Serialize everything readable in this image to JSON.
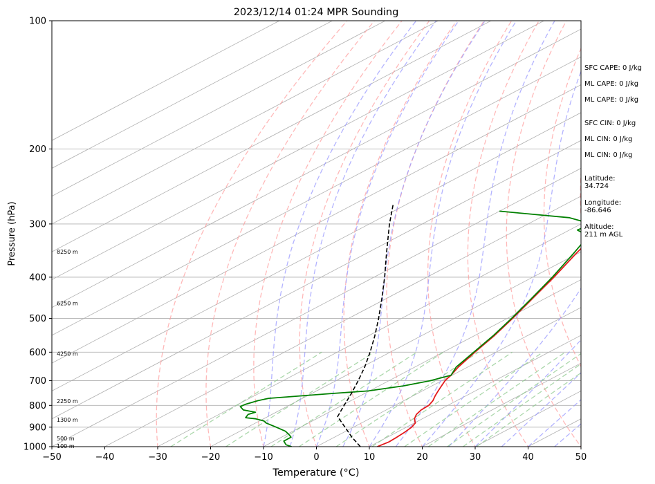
{
  "chart_data": {
    "type": "skew-t",
    "title": "2023/12/14 01:24 MPR Sounding",
    "xlabel": "Temperature (°C)",
    "ylabel": "Pressure (hPa)",
    "xlim": [
      -50,
      50
    ],
    "ylim": [
      1000,
      100
    ],
    "x_ticks": [
      -50,
      -40,
      -30,
      -20,
      -10,
      0,
      10,
      20,
      30,
      40,
      50
    ],
    "y_ticks": [
      100,
      200,
      300,
      400,
      500,
      600,
      700,
      800,
      900,
      1000
    ],
    "y_scale": "log",
    "grid": true,
    "temperature": {
      "color": "#e41a1c",
      "points": [
        [
          1000,
          11.5
        ],
        [
          975,
          12.0
        ],
        [
          950,
          11.8
        ],
        [
          925,
          11.5
        ],
        [
          900,
          11.0
        ],
        [
          880,
          10.2
        ],
        [
          860,
          8.5
        ],
        [
          840,
          7.3
        ],
        [
          820,
          6.6
        ],
        [
          800,
          6.4
        ],
        [
          780,
          5.5
        ],
        [
          760,
          4.2
        ],
        [
          740,
          3.0
        ],
        [
          720,
          1.8
        ],
        [
          700,
          0.6
        ],
        [
          690,
          0.2
        ],
        [
          680,
          -0.2
        ],
        [
          650,
          -1.8
        ],
        [
          600,
          -4.0
        ],
        [
          550,
          -6.2
        ],
        [
          500,
          -9.0
        ],
        [
          450,
          -12.3
        ],
        [
          400,
          -16.0
        ],
        [
          350,
          -20.5
        ],
        [
          320,
          -23.2
        ],
        [
          300,
          -25.0
        ],
        [
          285,
          -26.8
        ],
        [
          275,
          -28.5
        ],
        [
          265,
          -30.6
        ]
      ]
    },
    "dewpoint": {
      "color": "#008000",
      "points": [
        [
          1000,
          -4.7
        ],
        [
          990,
          -6.4
        ],
        [
          970,
          -8.2
        ],
        [
          950,
          -8.2
        ],
        [
          940,
          -9.2
        ],
        [
          920,
          -11.4
        ],
        [
          900,
          -14.6
        ],
        [
          880,
          -18.0
        ],
        [
          870,
          -19.2
        ],
        [
          860,
          -21.5
        ],
        [
          855,
          -23.8
        ],
        [
          840,
          -24.5
        ],
        [
          830,
          -23.9
        ],
        [
          820,
          -27.0
        ],
        [
          805,
          -28.8
        ],
        [
          795,
          -28.6
        ],
        [
          780,
          -27.6
        ],
        [
          770,
          -26.4
        ],
        [
          750,
          -16.0
        ],
        [
          740,
          -10.2
        ],
        [
          720,
          -5.4
        ],
        [
          700,
          -2.2
        ],
        [
          680,
          -0.2
        ],
        [
          650,
          -2.2
        ],
        [
          600,
          -4.2
        ],
        [
          550,
          -6.4
        ],
        [
          500,
          -9.2
        ],
        [
          450,
          -12.5
        ],
        [
          400,
          -16.3
        ],
        [
          350,
          -21.0
        ],
        [
          320,
          -24.3
        ],
        [
          310,
          -28.5
        ],
        [
          300,
          -28.0
        ],
        [
          290,
          -34.5
        ],
        [
          280,
          -50.0
        ]
      ]
    },
    "parcel": {
      "color": "#000000",
      "points": [
        [
          1000,
          8.3
        ],
        [
          950,
          3.3
        ],
        [
          900,
          -1.6
        ],
        [
          850,
          -6.8
        ],
        [
          800,
          -9.6
        ],
        [
          750,
          -12.5
        ],
        [
          700,
          -15.8
        ],
        [
          650,
          -19.5
        ],
        [
          600,
          -23.8
        ],
        [
          550,
          -28.7
        ],
        [
          500,
          -34.3
        ],
        [
          450,
          -40.7
        ],
        [
          400,
          -48.0
        ],
        [
          350,
          -56.5
        ],
        [
          300,
          -66.2
        ],
        [
          270,
          -72.5
        ]
      ]
    },
    "height_labels": [
      {
        "p": 1000,
        "label": "100 m"
      },
      {
        "p": 960,
        "label": "500 m"
      },
      {
        "p": 868,
        "label": "1300 m"
      },
      {
        "p": 785,
        "label": "2250 m"
      },
      {
        "p": 607,
        "label": "4250 m"
      },
      {
        "p": 462,
        "label": "6250 m"
      },
      {
        "p": 350,
        "label": "8250 m"
      }
    ]
  },
  "info_panel": {
    "sfc_cape": "SFC CAPE: 0 J/kg",
    "ml_cape_1": "ML CAPE: 0 J/kg",
    "ml_cape_2": "ML CAPE: 0 J/kg",
    "sfc_cin": "SFC CIN: 0 J/kg",
    "ml_cin_1": "ML CIN: 0 J/kg",
    "ml_cin_2": "ML CIN: 0 J/kg",
    "latitude_label": "Latitude:",
    "latitude_value": "34.724",
    "longitude_label": "Longitude:",
    "longitude_value": "-86.646",
    "altitude_label": "Altitude:",
    "altitude_value": "211 m AGL"
  },
  "colors": {
    "isotherm": "#b0b0b0",
    "dry_adiabat": "#ff9a9a",
    "moist_adiabat": "#9a9aff",
    "mixing_ratio": "#8fc98f",
    "grid": "#b0b0b0"
  }
}
